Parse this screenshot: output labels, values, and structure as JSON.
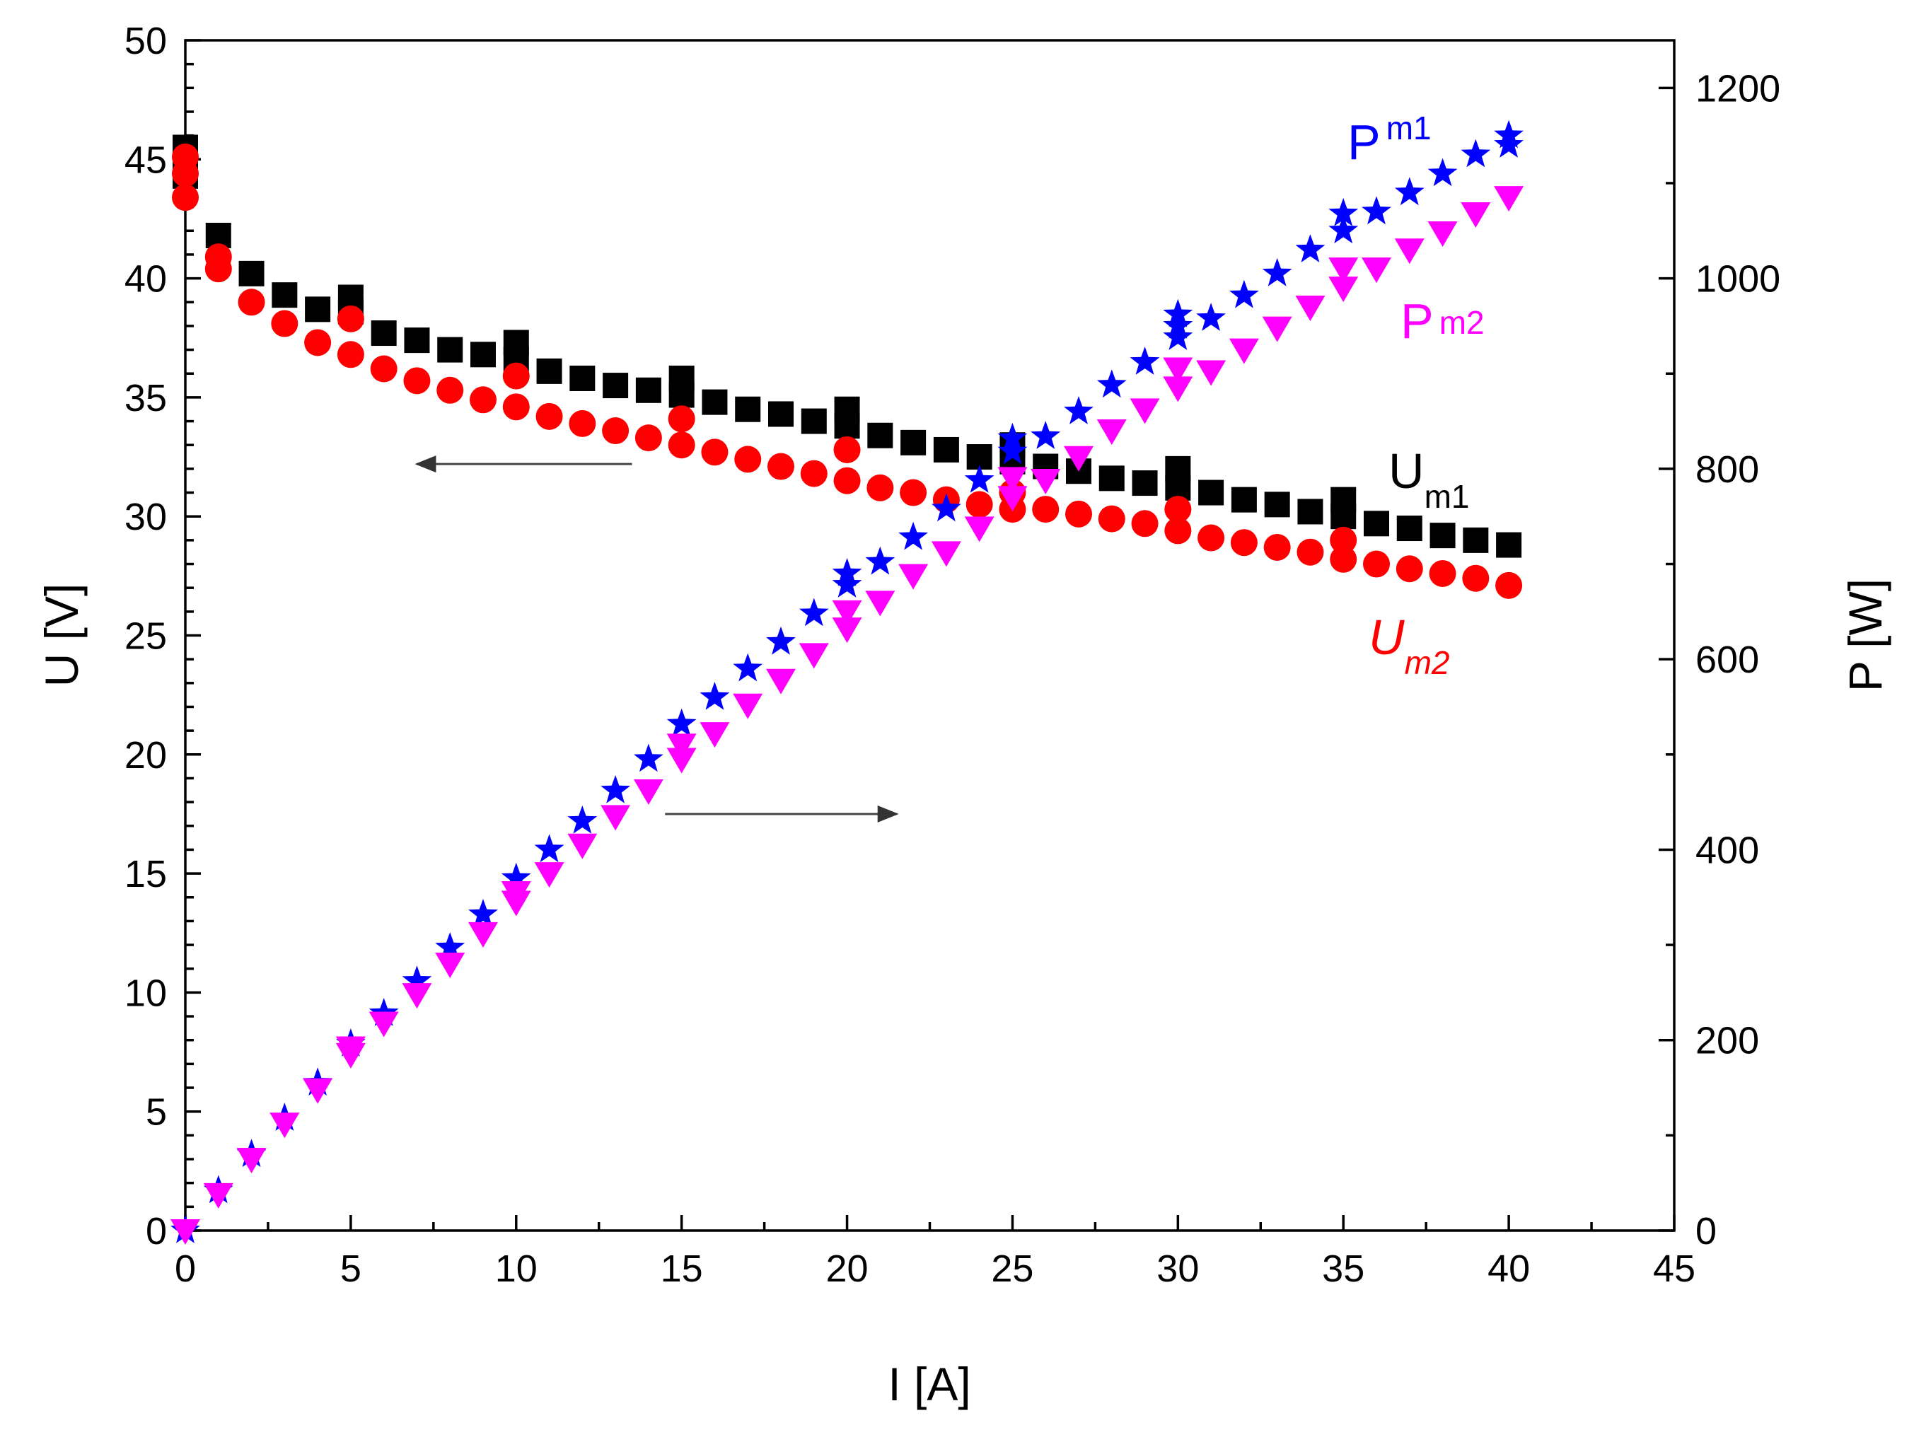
{
  "chart_data": {
    "type": "scatter",
    "xlabel": "I [A]",
    "ylabel_left": "U [V]",
    "ylabel_right": "P [W]",
    "xlim": [
      0,
      45
    ],
    "ylim_left": [
      0,
      50
    ],
    "ylim_right": [
      0,
      1250
    ],
    "x_ticks": [
      "0",
      "5",
      "10",
      "15",
      "20",
      "25",
      "30",
      "35",
      "40",
      "45"
    ],
    "y_left_ticks": [
      "0",
      "5",
      "10",
      "15",
      "20",
      "25",
      "30",
      "35",
      "40",
      "45",
      "50"
    ],
    "y_right_ticks": [
      "0",
      "200",
      "400",
      "600",
      "800",
      "1000",
      "1200"
    ],
    "grid": false,
    "series": [
      {
        "name": "U_m1",
        "axis": "left",
        "marker": "square",
        "color": "#000000",
        "x": [
          0,
          0,
          0,
          1,
          2,
          3,
          4,
          5,
          5,
          6,
          7,
          8,
          9,
          10,
          10,
          11,
          12,
          13,
          14,
          15,
          15,
          16,
          17,
          18,
          19,
          20,
          20,
          21,
          22,
          23,
          24,
          25,
          25,
          26,
          27,
          28,
          29,
          30,
          30,
          31,
          32,
          33,
          34,
          35,
          35,
          36,
          37,
          38,
          39,
          40
        ],
        "y": [
          45.5,
          44.8,
          44.3,
          41.8,
          40.2,
          39.3,
          38.7,
          39.2,
          38.6,
          37.7,
          37.4,
          37.0,
          36.8,
          37.3,
          36.6,
          36.1,
          35.8,
          35.5,
          35.3,
          35.8,
          35.1,
          34.8,
          34.5,
          34.3,
          34.0,
          34.5,
          33.8,
          33.4,
          33.1,
          32.8,
          32.5,
          33.0,
          32.3,
          32.1,
          31.9,
          31.6,
          31.4,
          32.0,
          31.2,
          31.0,
          30.7,
          30.5,
          30.2,
          30.7,
          30.0,
          29.7,
          29.5,
          29.2,
          29.0,
          28.8
        ]
      },
      {
        "name": "U_m2",
        "axis": "left",
        "marker": "circle",
        "color": "#ff0000",
        "x": [
          0,
          0,
          0,
          1,
          1,
          2,
          3,
          4,
          5,
          5,
          6,
          7,
          8,
          9,
          10,
          10,
          11,
          12,
          13,
          14,
          15,
          15,
          16,
          17,
          18,
          19,
          20,
          20,
          21,
          22,
          23,
          24,
          25,
          25,
          26,
          27,
          28,
          29,
          30,
          30,
          31,
          32,
          33,
          34,
          35,
          35,
          36,
          37,
          38,
          39,
          40
        ],
        "y": [
          45.1,
          44.4,
          43.4,
          40.9,
          40.4,
          39.0,
          38.1,
          37.3,
          38.3,
          36.8,
          36.2,
          35.7,
          35.3,
          34.9,
          35.9,
          34.6,
          34.2,
          33.9,
          33.6,
          33.3,
          34.1,
          33.0,
          32.7,
          32.4,
          32.1,
          31.8,
          32.8,
          31.5,
          31.2,
          31.0,
          30.7,
          30.5,
          31.0,
          30.3,
          30.3,
          30.1,
          29.9,
          29.7,
          30.3,
          29.4,
          29.1,
          28.9,
          28.7,
          28.5,
          29.0,
          28.2,
          28.0,
          27.8,
          27.6,
          27.4,
          27.1
        ]
      },
      {
        "name": "P_m1",
        "axis": "right",
        "marker": "star",
        "color": "#0000ff",
        "x": [
          0,
          1,
          2,
          3,
          4,
          5,
          6,
          7,
          8,
          9,
          10,
          11,
          12,
          13,
          14,
          15,
          16,
          17,
          18,
          19,
          20,
          20,
          21,
          22,
          23,
          24,
          25,
          25,
          26,
          27,
          28,
          29,
          30,
          30,
          30,
          31,
          32,
          33,
          34,
          35,
          35,
          36,
          37,
          38,
          39,
          40,
          40
        ],
        "y": [
          0,
          42,
          80,
          118,
          155,
          196,
          228,
          262,
          297,
          332,
          370,
          400,
          430,
          462,
          495,
          532,
          560,
          590,
          618,
          648,
          678,
          690,
          702,
          728,
          758,
          788,
          818,
          832,
          834,
          860,
          888,
          912,
          938,
          950,
          962,
          958,
          982,
          1005,
          1030,
          1050,
          1068,
          1070,
          1090,
          1110,
          1130,
          1140,
          1150
        ]
      },
      {
        "name": "P_m2",
        "axis": "right",
        "marker": "triangle-down",
        "color": "#ff00ff",
        "x": [
          0,
          1,
          2,
          3,
          4,
          5,
          5,
          6,
          7,
          8,
          9,
          10,
          10,
          11,
          12,
          13,
          14,
          15,
          15,
          16,
          17,
          18,
          19,
          20,
          20,
          21,
          22,
          23,
          24,
          25,
          25,
          26,
          27,
          28,
          29,
          30,
          30,
          31,
          32,
          33,
          34,
          35,
          35,
          36,
          37,
          38,
          39,
          40
        ],
        "y": [
          0,
          38,
          75,
          112,
          148,
          185,
          192,
          218,
          248,
          280,
          312,
          345,
          355,
          375,
          405,
          435,
          462,
          495,
          510,
          522,
          552,
          578,
          605,
          632,
          650,
          660,
          688,
          712,
          738,
          770,
          790,
          788,
          812,
          840,
          862,
          885,
          905,
          902,
          925,
          948,
          970,
          990,
          1010,
          1010,
          1030,
          1048,
          1068,
          1085
        ]
      }
    ],
    "annotations": [
      {
        "main": "P",
        "sub": "m1",
        "color": "#0000ff",
        "italic": false
      },
      {
        "main": "P",
        "sub": "m2",
        "color": "#ff00ff",
        "italic": false
      },
      {
        "main": "U",
        "sub": "m1",
        "color": "#000000",
        "italic": false
      },
      {
        "main": "U",
        "sub": "m2",
        "color": "#ff0000",
        "italic": true
      }
    ],
    "arrows": [
      {
        "from_x": 13.5,
        "to_x": 7.0,
        "axis": "left",
        "y": 32.2,
        "direction": "left"
      },
      {
        "from_x": 14.5,
        "to_x": 21.5,
        "axis": "left",
        "y": 17.5,
        "direction": "right"
      }
    ]
  }
}
